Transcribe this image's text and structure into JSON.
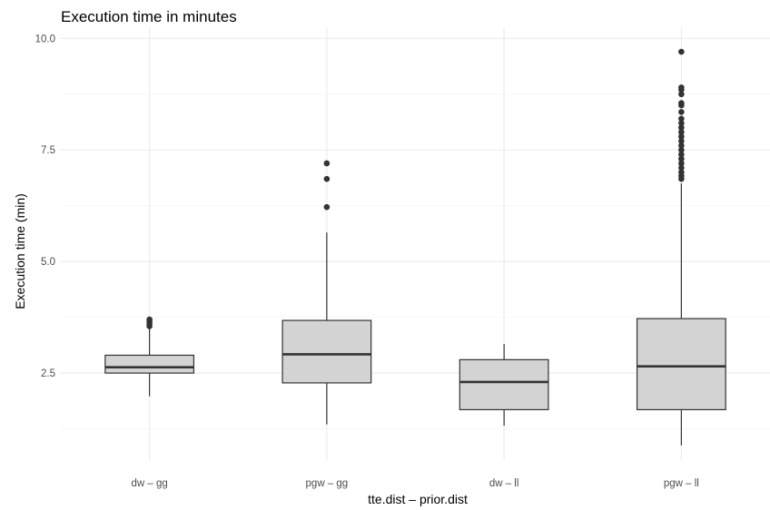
{
  "chart_data": {
    "type": "boxplot",
    "title": "Execution time in minutes",
    "xlabel": "tte.dist – prior.dist",
    "ylabel": "Execution time (min)",
    "ylim": [
      0.55,
      10.25
    ],
    "y_ticks": [
      2.5,
      5.0,
      7.5,
      10.0
    ],
    "y_tick_labels": [
      "2.5",
      "5.0",
      "7.5",
      "10.0"
    ],
    "y_minor_ticks": [
      1.25,
      3.75,
      6.25,
      8.75
    ],
    "grid": true,
    "fill_color": "#d3d3d3",
    "line_color": "#333333",
    "categories": [
      "dw – gg",
      "pgw – gg",
      "dw – ll",
      "pgw – ll"
    ],
    "boxes": [
      {
        "category": "dw – gg",
        "whisker_low": 1.98,
        "q1": 2.5,
        "median": 2.63,
        "q3": 2.9,
        "whisker_high": 3.5,
        "outliers": [
          3.55,
          3.6,
          3.65,
          3.7
        ]
      },
      {
        "category": "pgw – gg",
        "whisker_low": 1.35,
        "q1": 2.28,
        "median": 2.92,
        "q3": 3.68,
        "whisker_high": 5.65,
        "outliers": [
          6.22,
          6.85,
          7.2
        ]
      },
      {
        "category": "dw – ll",
        "whisker_low": 1.32,
        "q1": 1.68,
        "median": 2.3,
        "q3": 2.8,
        "whisker_high": 3.15,
        "outliers": []
      },
      {
        "category": "pgw – ll",
        "whisker_low": 0.88,
        "q1": 1.68,
        "median": 2.65,
        "q3": 3.72,
        "whisker_high": 6.75,
        "outliers": [
          6.85,
          6.92,
          7.0,
          7.1,
          7.2,
          7.3,
          7.4,
          7.5,
          7.6,
          7.7,
          7.8,
          7.9,
          8.0,
          8.1,
          8.2,
          8.35,
          8.5,
          8.55,
          8.75,
          8.85,
          8.9,
          9.7
        ]
      }
    ]
  }
}
